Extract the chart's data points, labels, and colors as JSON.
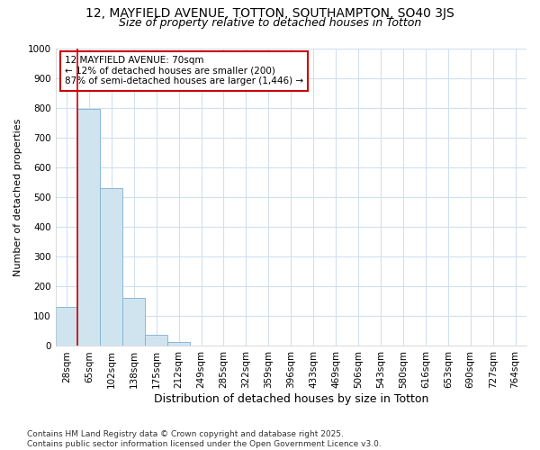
{
  "title1": "12, MAYFIELD AVENUE, TOTTON, SOUTHAMPTON, SO40 3JS",
  "title2": "Size of property relative to detached houses in Totton",
  "xlabel": "Distribution of detached houses by size in Totton",
  "ylabel": "Number of detached properties",
  "categories": [
    "28sqm",
    "65sqm",
    "102sqm",
    "138sqm",
    "175sqm",
    "212sqm",
    "249sqm",
    "285sqm",
    "322sqm",
    "359sqm",
    "396sqm",
    "433sqm",
    "469sqm",
    "506sqm",
    "543sqm",
    "580sqm",
    "616sqm",
    "653sqm",
    "690sqm",
    "727sqm",
    "764sqm"
  ],
  "values": [
    130,
    798,
    530,
    162,
    38,
    15,
    0,
    0,
    0,
    0,
    0,
    0,
    0,
    0,
    0,
    0,
    0,
    0,
    0,
    0,
    0
  ],
  "bar_color": "#d0e4f0",
  "bar_edge_color": "#7bafd4",
  "red_line_x": 0.5,
  "annotation_text": "12 MAYFIELD AVENUE: 70sqm\n← 12% of detached houses are smaller (200)\n87% of semi-detached houses are larger (1,446) →",
  "annotation_box_color": "#ffffff",
  "annotation_edge_color": "#cc0000",
  "red_line_color": "#cc0000",
  "ylim": [
    0,
    1000
  ],
  "yticks": [
    0,
    100,
    200,
    300,
    400,
    500,
    600,
    700,
    800,
    900,
    1000
  ],
  "footnote": "Contains HM Land Registry data © Crown copyright and database right 2025.\nContains public sector information licensed under the Open Government Licence v3.0.",
  "bg_color": "#ffffff",
  "grid_color": "#d0e0f0",
  "title1_fontsize": 10,
  "title2_fontsize": 9,
  "xlabel_fontsize": 9,
  "ylabel_fontsize": 8,
  "tick_fontsize": 7.5,
  "footnote_fontsize": 6.5
}
